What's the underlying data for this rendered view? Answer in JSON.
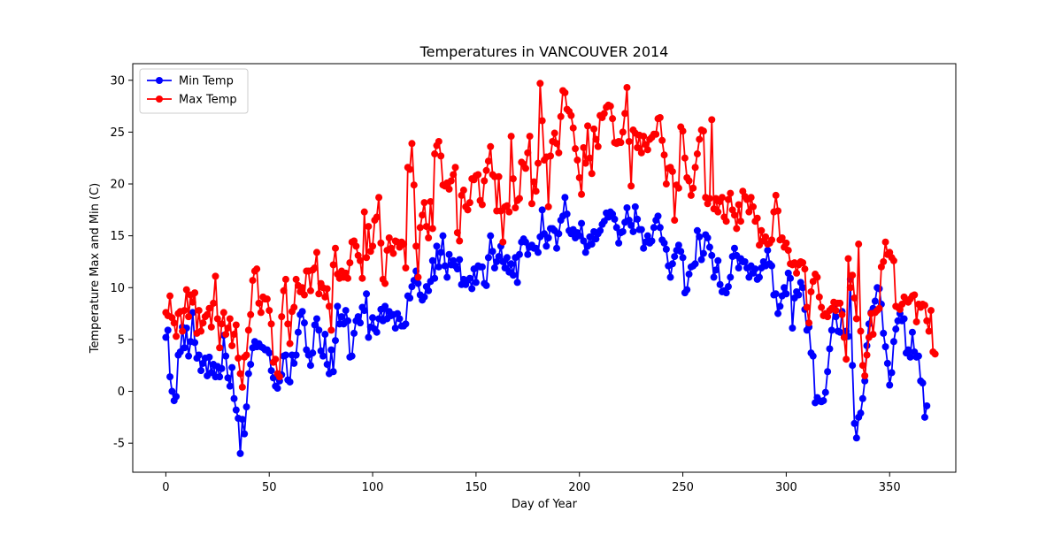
{
  "chart_data": {
    "type": "line",
    "title": "Temperatures in  VANCOUVER 2014",
    "xlabel": "Day of Year",
    "ylabel": "Temperature Max and Min (C)",
    "xlim": [
      -16,
      382
    ],
    "ylim": [
      -7.8,
      31.6
    ],
    "xticks": [
      0,
      50,
      100,
      150,
      200,
      250,
      300,
      350
    ],
    "yticks": [
      -5,
      0,
      5,
      10,
      15,
      20,
      25,
      30
    ],
    "grid": false,
    "legend_position": "upper-left",
    "series": [
      {
        "name": "Min Temp",
        "color": "#0000ff",
        "values": [
          5.2,
          5.9,
          1.4,
          0.0,
          -0.9,
          -0.5,
          3.5,
          3.8,
          6.2,
          4.2,
          6.1,
          3.4,
          4.8,
          7.6,
          4.7,
          3.2,
          3.5,
          2.0,
          2.7,
          3.2,
          1.5,
          3.3,
          1.8,
          2.6,
          1.4,
          2.4,
          1.4,
          2.2,
          5.4,
          3.4,
          1.3,
          0.5,
          2.3,
          -0.7,
          -1.8,
          -2.6,
          -6.0,
          -2.7,
          -4.1,
          -1.5,
          1.7,
          2.6,
          4.2,
          4.8,
          4.3,
          4.6,
          4.3,
          4.2,
          4.0,
          4.0,
          3.7,
          2.0,
          1.3,
          0.5,
          0.3,
          1.0,
          1.6,
          3.4,
          3.5,
          1.1,
          0.9,
          3.5,
          2.7,
          3.5,
          5.7,
          7.4,
          7.7,
          6.6,
          4.0,
          3.5,
          2.5,
          3.7,
          6.4,
          7.0,
          5.9,
          3.9,
          3.4,
          5.5,
          2.6,
          1.7,
          4.0,
          1.9,
          4.9,
          8.2,
          6.5,
          7.2,
          6.5,
          7.8,
          6.8,
          3.3,
          3.4,
          5.6,
          6.8,
          7.2,
          6.6,
          8.1,
          7.8,
          9.4,
          5.2,
          6.2,
          7.1,
          6.0,
          5.7,
          7.0,
          7.9,
          6.8,
          8.2,
          7.0,
          7.7,
          7.3,
          7.4,
          6.1,
          7.5,
          7.0,
          6.3,
          6.3,
          6.5,
          9.2,
          9.0,
          10.1,
          10.7,
          11.6,
          10.4,
          9.3,
          8.8,
          9.1,
          10.1,
          9.7,
          10.6,
          12.6,
          10.9,
          14.0,
          12.0,
          13.4,
          15.0,
          12.1,
          11.0,
          13.2,
          12.2,
          12.6,
          12.1,
          11.8,
          12.7,
          10.3,
          10.8,
          10.3,
          10.7,
          10.9,
          9.9,
          11.8,
          10.5,
          12.1,
          12.0,
          12.0,
          10.4,
          10.2,
          12.9,
          15.0,
          13.5,
          11.9,
          12.5,
          13.0,
          14.0,
          12.5,
          11.9,
          12.9,
          11.5,
          12.3,
          11.2,
          12.9,
          10.5,
          13.2,
          14.4,
          14.7,
          14.4,
          13.2,
          13.9,
          14.1,
          13.8,
          13.8,
          13.4,
          14.9,
          17.5,
          15.2,
          14.0,
          14.8,
          15.7,
          15.7,
          15.5,
          13.8,
          15.2,
          16.5,
          16.9,
          18.7,
          17.1,
          15.5,
          15.2,
          15.6,
          14.8,
          15.3,
          15.0,
          16.2,
          14.5,
          13.4,
          14.0,
          14.9,
          14.2,
          15.4,
          14.7,
          15.2,
          15.5,
          16.1,
          16.4,
          17.2,
          16.8,
          17.3,
          17.1,
          16.6,
          15.8,
          14.3,
          15.3,
          15.4,
          16.3,
          17.7,
          16.5,
          16.0,
          15.4,
          17.8,
          16.6,
          15.6,
          15.6,
          13.8,
          14.4,
          15.0,
          14.3,
          14.5,
          15.8,
          16.5,
          16.9,
          15.8,
          14.6,
          14.3,
          13.7,
          12.1,
          11.0,
          12.3,
          13.0,
          13.6,
          14.1,
          13.5,
          12.9,
          9.5,
          9.8,
          11.3,
          12.0,
          12.1,
          12.3,
          15.5,
          14.9,
          12.7,
          13.3,
          15.1,
          14.8,
          13.9,
          13.1,
          11.0,
          11.7,
          12.6,
          10.3,
          9.6,
          9.7,
          9.5,
          10.1,
          11.0,
          13.0,
          13.8,
          13.1,
          11.9,
          12.8,
          12.5,
          12.5,
          11.9,
          11.0,
          12.1,
          11.4,
          11.8,
          10.8,
          11.0,
          11.9,
          12.5,
          12.1,
          13.6,
          12.3,
          12.1,
          9.3,
          9.4,
          7.5,
          8.2,
          9.2,
          10.0,
          9.4,
          11.4,
          10.9,
          6.1,
          9.0,
          9.6,
          9.3,
          10.5,
          10.0,
          7.9,
          5.9,
          6.2,
          3.7,
          3.4,
          -1.1,
          -0.6,
          -0.9,
          -1.0,
          -0.9,
          -0.1,
          1.9,
          4.1,
          5.9,
          8.0,
          7.2,
          5.8,
          5.7,
          7.7,
          5.4,
          5.8,
          5.3,
          10.8,
          2.5,
          -3.1,
          -4.5,
          -2.5,
          -2.1,
          -0.7,
          1.0,
          4.4,
          6.5,
          7.6,
          8.0,
          8.7,
          10.0,
          9.9,
          8.4,
          5.6,
          4.3,
          2.7,
          0.6,
          1.8,
          4.8,
          6.0,
          6.8,
          7.5,
          6.8,
          7.0,
          3.7,
          4.0,
          3.3,
          5.7,
          3.8,
          3.3,
          3.4,
          1.0,
          0.8,
          -2.5,
          -1.4
        ],
        "values_note": "day 0 to 364"
      },
      {
        "name": "Max Temp",
        "color": "#ff0000",
        "values": [
          7.6,
          7.3,
          9.2,
          7.1,
          6.6,
          5.3,
          7.5,
          7.7,
          5.8,
          7.8,
          9.8,
          7.2,
          9.3,
          8.6,
          9.5,
          5.6,
          7.8,
          5.8,
          6.6,
          7.2,
          7.4,
          8.0,
          6.2,
          8.5,
          11.1,
          7.0,
          4.2,
          6.5,
          7.6,
          5.5,
          6.1,
          7.0,
          4.4,
          5.5,
          6.4,
          3.2,
          1.7,
          0.4,
          3.3,
          3.5,
          5.9,
          7.4,
          10.7,
          11.6,
          11.8,
          8.5,
          7.6,
          9.1,
          8.9,
          8.9,
          7.8,
          6.5,
          2.8,
          3.1,
          1.7,
          1.4,
          7.2,
          9.7,
          10.8,
          6.5,
          4.6,
          7.7,
          8.1,
          10.8,
          10.2,
          9.6,
          10.0,
          9.3,
          11.6,
          11.6,
          9.7,
          11.7,
          11.9,
          13.4,
          9.4,
          10.4,
          10.0,
          9.1,
          9.9,
          8.2,
          5.9,
          12.2,
          13.8,
          11.3,
          10.9,
          11.6,
          11.0,
          11.4,
          10.9,
          12.4,
          14.4,
          14.5,
          14.0,
          13.1,
          12.6,
          10.9,
          17.3,
          12.9,
          15.9,
          13.5,
          14.0,
          16.5,
          16.8,
          18.7,
          14.3,
          10.8,
          10.4,
          13.6,
          14.8,
          13.8,
          13.3,
          14.5,
          14.4,
          13.9,
          14.4,
          14.2,
          11.9,
          21.6,
          21.4,
          23.9,
          19.9,
          14.0,
          11.0,
          15.8,
          17.0,
          18.2,
          15.9,
          14.8,
          18.3,
          15.7,
          22.9,
          23.7,
          24.1,
          22.7,
          19.9,
          19.8,
          20.1,
          19.5,
          20.3,
          20.9,
          21.6,
          15.3,
          14.5,
          18.9,
          19.4,
          17.8,
          17.5,
          18.2,
          20.5,
          20.4,
          20.8,
          20.9,
          18.4,
          18.0,
          20.3,
          21.3,
          22.2,
          23.6,
          20.9,
          20.7,
          17.4,
          20.7,
          17.4,
          14.4,
          17.8,
          17.9,
          17.3,
          24.6,
          20.5,
          17.7,
          18.4,
          18.6,
          22.1,
          21.9,
          21.5,
          23.0,
          24.6,
          18.1,
          20.2,
          19.3,
          22.0,
          29.7,
          26.1,
          22.3,
          22.6,
          17.8,
          22.7,
          24.1,
          24.9,
          23.9,
          23.0,
          26.5,
          29.0,
          28.8,
          27.2,
          27.0,
          26.6,
          25.4,
          23.4,
          22.3,
          20.6,
          19.0,
          23.5,
          22.0,
          25.6,
          22.5,
          21.0,
          25.3,
          24.3,
          23.6,
          26.6,
          26.4,
          26.8,
          27.4,
          27.6,
          27.5,
          26.3,
          24.0,
          23.9,
          24.1,
          24.0,
          25.0,
          26.8,
          29.3,
          24.1,
          19.8,
          25.2,
          24.9,
          23.5,
          24.7,
          23.0,
          24.6,
          23.8,
          23.3,
          24.3,
          24.5,
          24.8,
          24.8,
          26.3,
          26.4,
          24.2,
          22.8,
          20.0,
          21.5,
          21.6,
          21.2,
          16.5,
          19.9,
          19.6,
          25.5,
          25.1,
          22.5,
          20.6,
          20.3,
          18.9,
          19.6,
          21.6,
          22.9,
          24.3,
          25.2,
          25.1,
          18.7,
          18.1,
          18.6,
          26.2,
          17.6,
          18.6,
          17.3,
          18.3,
          18.7,
          16.8,
          16.4,
          18.5,
          19.1,
          17.5,
          17.0,
          15.7,
          18.0,
          16.4,
          19.3,
          18.8,
          18.5,
          17.3,
          18.7,
          17.8,
          16.4,
          16.7,
          14.1,
          15.5,
          14.5,
          14.9,
          14.2,
          14.3,
          14.6,
          17.3,
          18.9,
          17.4,
          14.6,
          14.8,
          13.9,
          14.3,
          13.6,
          12.3,
          12.2,
          12.4,
          11.4,
          12.2,
          12.5,
          12.4,
          11.8,
          8.1,
          6.6,
          9.6,
          10.6,
          11.3,
          11.0,
          9.1,
          8.1,
          7.3,
          7.5,
          7.2,
          7.8,
          8.0,
          8.6,
          7.8,
          8.5,
          8.5,
          7.4,
          5.2,
          3.1,
          12.8,
          10.0,
          11.2,
          9.0,
          7.0,
          14.2,
          5.8,
          2.5,
          1.5,
          3.5,
          5.2,
          7.5,
          5.5,
          7.6,
          7.8,
          8.0,
          12.0,
          12.5,
          14.4,
          13.2,
          13.4,
          12.9,
          12.6,
          8.2,
          8.1,
          7.9,
          8.4,
          9.1,
          8.8,
          8.6,
          8.9,
          9.2,
          9.3,
          6.7,
          8.4,
          8.1,
          8.4,
          8.3,
          6.8,
          5.8,
          7.8,
          3.8,
          3.6
        ],
        "values_note": "day 0 to 364"
      }
    ]
  }
}
